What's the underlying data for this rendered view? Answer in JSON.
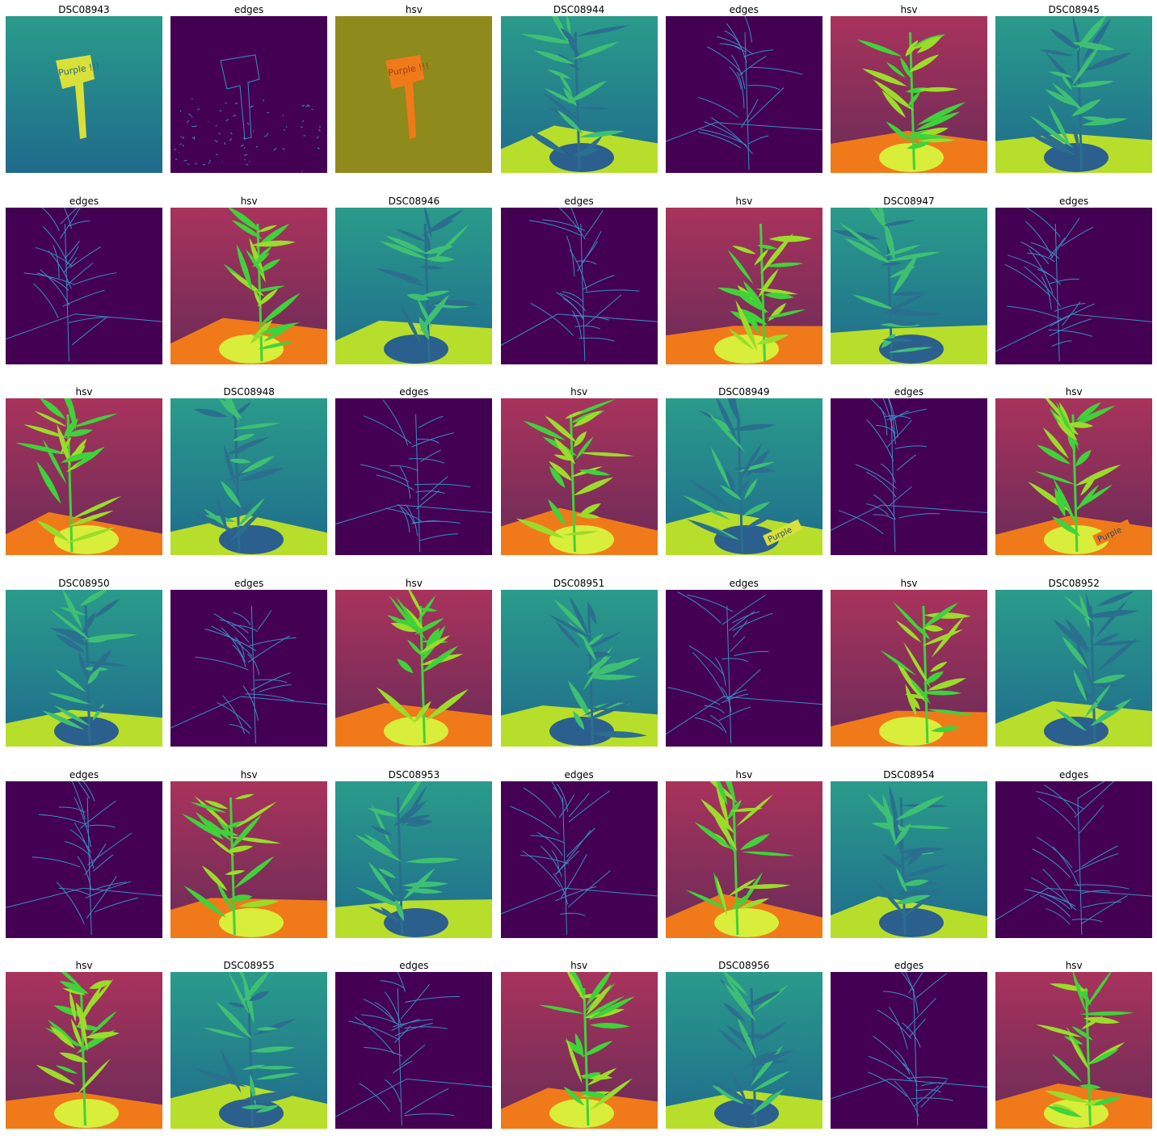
{
  "colors": {
    "gray_bg_top": "#2a9b8b",
    "gray_bg_bottom": "#1f6b8c",
    "gray_plant": "#3fbf74",
    "gray_table": "#b7de2b",
    "edges_bg": "#440154",
    "edges_line": "#3b8cc0",
    "hsv_bg_top": "#a8335c",
    "hsv_bg_mid": "#6a2b58",
    "hsv_plant": "#9bdc2a",
    "hsv_plant_dark": "#3fd23a",
    "hsv_table": "#f07a1a",
    "hsv_sign_bg": "#8f8a1c"
  },
  "panels": [
    {
      "title": "DSC08943",
      "kind": "gray",
      "subject": "sign",
      "sign_text": "Purple !!!"
    },
    {
      "title": "edges",
      "kind": "edges",
      "subject": "sign"
    },
    {
      "title": "hsv",
      "kind": "hsv",
      "subject": "sign",
      "sign_text": "Purple !!!"
    },
    {
      "title": "DSC08944",
      "kind": "gray",
      "subject": "plant"
    },
    {
      "title": "edges",
      "kind": "edges",
      "subject": "plant"
    },
    {
      "title": "hsv",
      "kind": "hsv",
      "subject": "plant"
    },
    {
      "title": "DSC08945",
      "kind": "gray",
      "subject": "plant"
    },
    {
      "title": "edges",
      "kind": "edges",
      "subject": "plant"
    },
    {
      "title": "hsv",
      "kind": "hsv",
      "subject": "plant"
    },
    {
      "title": "DSC08946",
      "kind": "gray",
      "subject": "plant"
    },
    {
      "title": "edges",
      "kind": "edges",
      "subject": "plant"
    },
    {
      "title": "hsv",
      "kind": "hsv",
      "subject": "plant"
    },
    {
      "title": "DSC08947",
      "kind": "gray",
      "subject": "plant"
    },
    {
      "title": "edges",
      "kind": "edges",
      "subject": "plant"
    },
    {
      "title": "hsv",
      "kind": "hsv",
      "subject": "plant"
    },
    {
      "title": "DSC08948",
      "kind": "gray",
      "subject": "plant"
    },
    {
      "title": "edges",
      "kind": "edges",
      "subject": "plant"
    },
    {
      "title": "hsv",
      "kind": "hsv",
      "subject": "plant"
    },
    {
      "title": "DSC08949",
      "kind": "gray",
      "subject": "plant",
      "sign_text": "Purple"
    },
    {
      "title": "edges",
      "kind": "edges",
      "subject": "plant"
    },
    {
      "title": "hsv",
      "kind": "hsv",
      "subject": "plant",
      "sign_text": "Purple"
    },
    {
      "title": "DSC08950",
      "kind": "gray",
      "subject": "plant"
    },
    {
      "title": "edges",
      "kind": "edges",
      "subject": "plant"
    },
    {
      "title": "hsv",
      "kind": "hsv",
      "subject": "plant"
    },
    {
      "title": "DSC08951",
      "kind": "gray",
      "subject": "plant"
    },
    {
      "title": "edges",
      "kind": "edges",
      "subject": "plant"
    },
    {
      "title": "hsv",
      "kind": "hsv",
      "subject": "plant"
    },
    {
      "title": "DSC08952",
      "kind": "gray",
      "subject": "plant"
    },
    {
      "title": "edges",
      "kind": "edges",
      "subject": "plant"
    },
    {
      "title": "hsv",
      "kind": "hsv",
      "subject": "plant"
    },
    {
      "title": "DSC08953",
      "kind": "gray",
      "subject": "plant"
    },
    {
      "title": "edges",
      "kind": "edges",
      "subject": "plant"
    },
    {
      "title": "hsv",
      "kind": "hsv",
      "subject": "plant"
    },
    {
      "title": "DSC08954",
      "kind": "gray",
      "subject": "plant"
    },
    {
      "title": "edges",
      "kind": "edges",
      "subject": "plant"
    },
    {
      "title": "hsv",
      "kind": "hsv",
      "subject": "plant"
    },
    {
      "title": "DSC08955",
      "kind": "gray",
      "subject": "plant"
    },
    {
      "title": "edges",
      "kind": "edges",
      "subject": "plant"
    },
    {
      "title": "hsv",
      "kind": "hsv",
      "subject": "plant"
    },
    {
      "title": "DSC08956",
      "kind": "gray",
      "subject": "plant"
    },
    {
      "title": "edges",
      "kind": "edges",
      "subject": "plant"
    },
    {
      "title": "hsv",
      "kind": "hsv",
      "subject": "plant"
    }
  ]
}
